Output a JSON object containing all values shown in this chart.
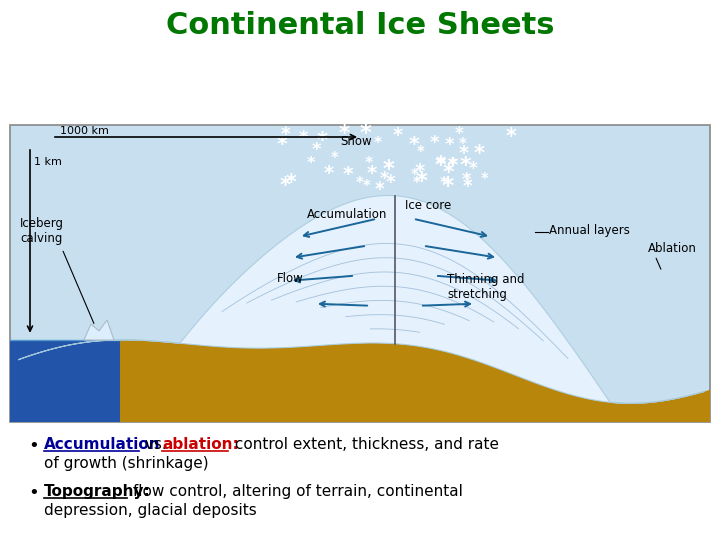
{
  "title": "Continental Ice Sheets",
  "title_color": "#007700",
  "title_fontsize": 22,
  "bg_color": "#ffffff",
  "diagram_bg": "#c8dff0",
  "ground_color": "#b8860b",
  "water_color": "#2255aa",
  "ice_color": "#e8f4ff",
  "bullet1_blue_text": "Accumulation",
  "bullet1_mid_text": " vs. ",
  "bullet1_red_text": "ablation:",
  "bullet1_rest": " control extent, thickness, and rate",
  "bullet1_line2": "of growth (shrinkage)",
  "bullet2_underline": "Topography:",
  "bullet2_rest": " flow control, altering of terrain, continental",
  "bullet2_line2": "depression, glacial deposits",
  "label_snow": "Snow",
  "label_accumulation": "Accumulation",
  "label_ice_core": "Ice core",
  "label_annual_layers": "Annual layers",
  "label_ablation": "Ablation",
  "label_iceberg": "Iceberg\ncalving",
  "label_flow": "Flow",
  "label_thinning": "Thinning and\nstretching",
  "label_1000km": "1000 km",
  "label_1km": "1 km"
}
